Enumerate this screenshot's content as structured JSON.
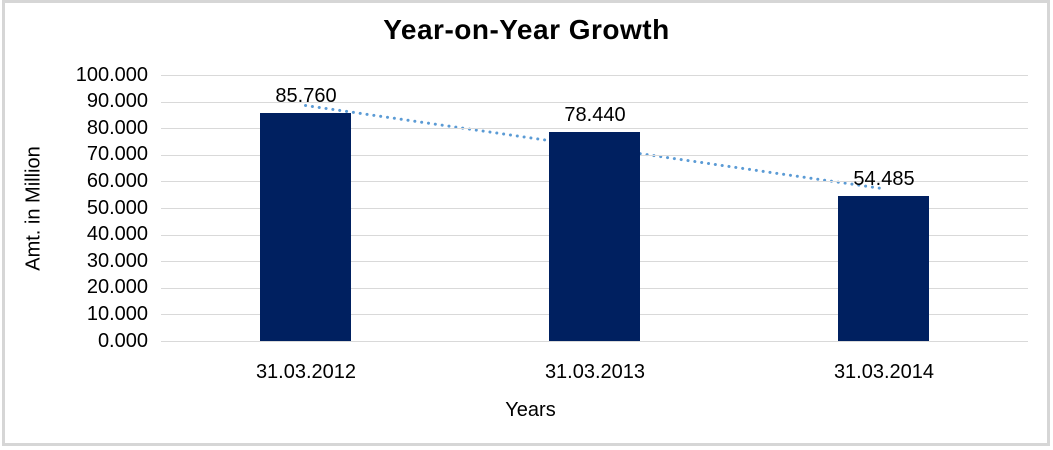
{
  "window": {
    "background_color": "#ffffff",
    "frame_border_color": "#d6d6d6"
  },
  "chart_data": {
    "type": "bar",
    "title": "Year-on-Year Growth",
    "xlabel": "Years",
    "ylabel": "Amt. in Million",
    "categories": [
      "31.03.2012",
      "31.03.2013",
      "31.03.2014"
    ],
    "values": [
      85.76,
      78.44,
      54.485
    ],
    "data_labels": [
      "85.760",
      "78.440",
      "54.485"
    ],
    "ylim": [
      0,
      100
    ],
    "y_tick_step": 10,
    "y_tick_labels": [
      "0.000",
      "10.000",
      "20.000",
      "30.000",
      "40.000",
      "50.000",
      "60.000",
      "70.000",
      "80.000",
      "90.000",
      "100.000"
    ],
    "grid": true,
    "legend": false,
    "bar_color": "#002060",
    "gridline_color": "#d9d9d9",
    "text_color": "#000000",
    "trendline": {
      "type": "linear",
      "style": "dotted",
      "color": "#5b9bd5"
    }
  }
}
